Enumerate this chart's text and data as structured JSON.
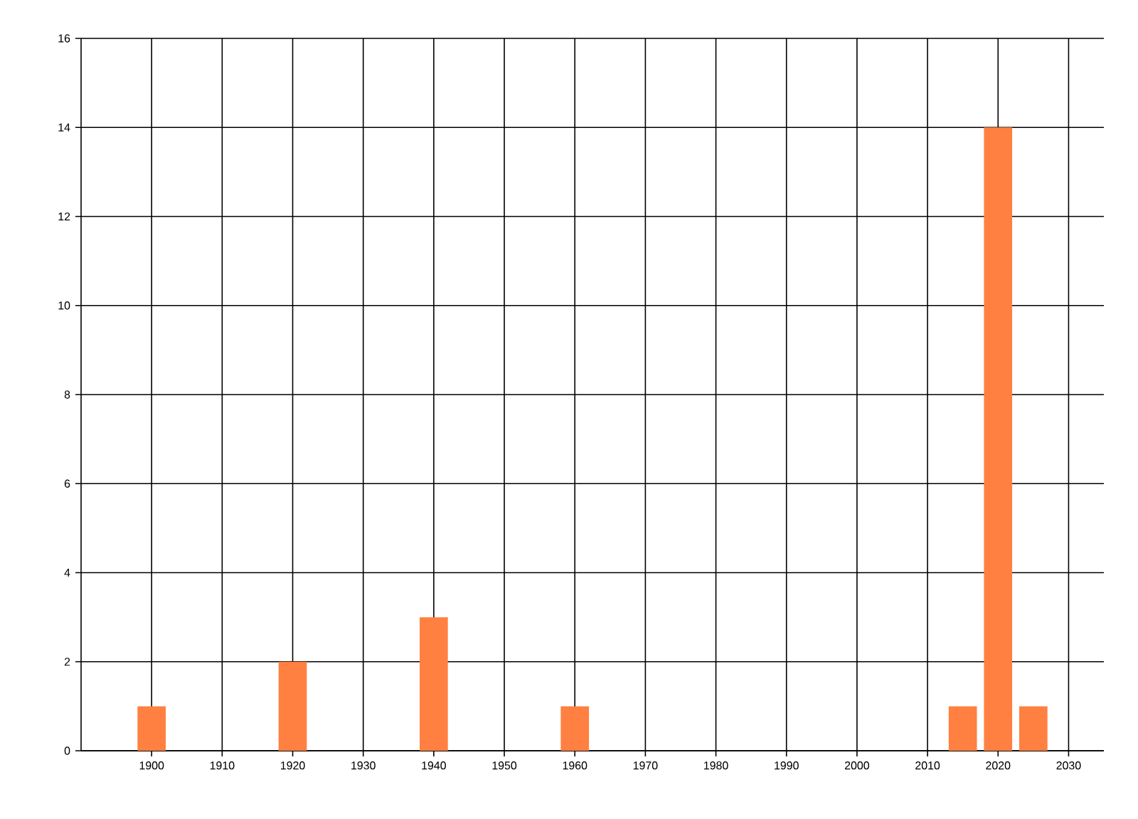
{
  "chart_data": {
    "type": "bar",
    "x": [
      1900,
      1920,
      1940,
      1960,
      2015,
      2020,
      2025
    ],
    "values": [
      1,
      2,
      3,
      1,
      1,
      14,
      1
    ],
    "color": "#ff8040",
    "xlim": [
      1890,
      2035
    ],
    "xticks": [
      1900,
      1910,
      1920,
      1930,
      1940,
      1950,
      1960,
      1970,
      1980,
      1990,
      2000,
      2010,
      2020,
      2030
    ],
    "ylim": [
      0,
      16
    ],
    "yticks": [
      0,
      2,
      4,
      6,
      8,
      10,
      12,
      14,
      16
    ],
    "grid": true
  }
}
